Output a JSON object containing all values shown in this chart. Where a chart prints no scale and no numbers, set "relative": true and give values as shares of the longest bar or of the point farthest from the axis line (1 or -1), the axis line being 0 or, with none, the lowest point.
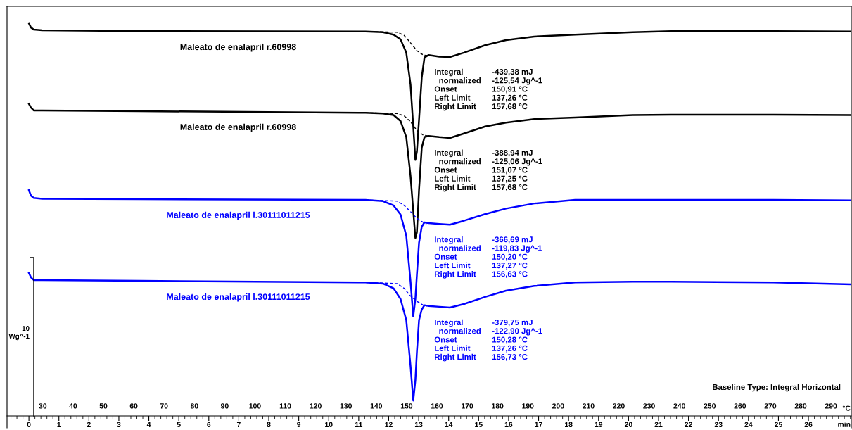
{
  "chart_data": {
    "type": "line",
    "relative": true,
    "xlabel": "°C",
    "x2label": "min",
    "x": [
      25.4,
      26.1,
      27.0,
      29.8,
      62.2,
      136.4,
      142.2,
      145.7,
      148.0,
      149.9,
      151.3,
      152.2,
      152.9,
      153.4,
      154.1,
      155.0,
      155.9,
      157.3,
      160.8,
      164.3,
      168.9,
      175.9,
      182.8,
      192.1,
      205.6,
      224.6,
      237.3,
      271.0,
      296.7
    ],
    "xlim": [
      18.2,
      296.7
    ],
    "xticks": [
      30,
      40,
      50,
      60,
      70,
      80,
      90,
      100,
      110,
      120,
      130,
      140,
      150,
      160,
      170,
      180,
      190,
      200,
      210,
      220,
      230,
      240,
      250,
      260,
      270,
      280,
      290
    ],
    "x2lim": [
      -0.73,
      27.43
    ],
    "x2ticks": [
      0,
      1,
      2,
      3,
      4,
      5,
      6,
      7,
      8,
      9,
      10,
      11,
      12,
      13,
      14,
      15,
      16,
      17,
      18,
      19,
      20,
      21,
      22,
      23,
      24,
      25,
      26
    ],
    "marker": "none",
    "series": [
      {
        "name": "Maleato de enalapril r.60998",
        "color": "#000000",
        "line_style": "solid",
        "values": [
          1.0,
          0.989,
          0.984,
          0.982,
          0.98,
          0.979,
          0.977,
          0.971,
          0.959,
          0.925,
          0.844,
          0.737,
          0.652,
          0.673,
          0.754,
          0.862,
          0.913,
          0.919,
          0.915,
          0.914,
          0.925,
          0.944,
          0.957,
          0.966,
          0.971,
          0.977,
          0.98,
          0.98,
          0.979
        ]
      },
      {
        "name": "Maleato de enalapril r.60998",
        "color": "#000000",
        "line_style": "solid",
        "values": [
          0.795,
          0.785,
          0.778,
          0.778,
          0.776,
          0.772,
          0.77,
          0.766,
          0.751,
          0.71,
          0.611,
          0.522,
          0.453,
          0.468,
          0.575,
          0.683,
          0.71,
          0.713,
          0.71,
          0.708,
          0.719,
          0.737,
          0.747,
          0.756,
          0.76,
          0.766,
          0.767,
          0.767,
          0.766
        ]
      },
      {
        "name": "Maleato de enalapril l.30111011215",
        "color": "#0000ff",
        "line_style": "solid",
        "values": [
          0.575,
          0.561,
          0.555,
          0.553,
          0.552,
          0.55,
          0.547,
          0.536,
          0.513,
          0.459,
          0.342,
          0.253,
          0.298,
          0.36,
          0.441,
          0.482,
          0.493,
          0.491,
          0.489,
          0.487,
          0.497,
          0.514,
          0.528,
          0.541,
          0.55,
          0.55,
          0.55,
          0.55,
          0.549
        ]
      },
      {
        "name": "Maleato de enalapril l.30111011215",
        "color": "#0000ff",
        "line_style": "solid",
        "values": [
          0.364,
          0.353,
          0.346,
          0.346,
          0.344,
          0.34,
          0.337,
          0.325,
          0.298,
          0.244,
          0.127,
          0.039,
          0.091,
          0.163,
          0.244,
          0.271,
          0.282,
          0.28,
          0.278,
          0.276,
          0.285,
          0.303,
          0.319,
          0.331,
          0.34,
          0.342,
          0.342,
          0.34,
          0.335
        ]
      },
      {
        "color": "#000000",
        "line_style": "dashed",
        "x": [
          136.4,
          146.9,
          149.2,
          151.1,
          153.4,
          155.5,
          157.8
        ],
        "values": [
          0.979,
          0.977,
          0.969,
          0.952,
          0.93,
          0.919,
          0.917
        ]
      },
      {
        "color": "#000000",
        "line_style": "dashed",
        "x": [
          136.4,
          146.9,
          149.2,
          151.1,
          153.4,
          155.5,
          157.8
        ],
        "values": [
          0.772,
          0.77,
          0.764,
          0.751,
          0.727,
          0.715,
          0.712
        ]
      },
      {
        "color": "#0000ff",
        "line_style": "dashed",
        "x": [
          136.4,
          146.9,
          149.2,
          151.1,
          153.4,
          155.5,
          156.6
        ],
        "values": [
          0.55,
          0.547,
          0.536,
          0.522,
          0.503,
          0.493,
          0.489
        ]
      },
      {
        "color": "#0000ff",
        "line_style": "dashed",
        "x": [
          136.4,
          146.9,
          149.2,
          151.1,
          153.4,
          155.5,
          156.7
        ],
        "values": [
          0.34,
          0.337,
          0.325,
          0.307,
          0.292,
          0.282,
          0.28
        ]
      }
    ],
    "annotations": [
      "Integral\n  normalized\nOnset\nLeft Limit\nRight Limit",
      "-439,38 mJ\n-125,54 Jg^-1\n150,91 °C\n137,26 °C\n157,68 °C",
      "Integral\n  normalized\nOnset\nLeft Limit\nRight Limit",
      "-388,94 mJ\n-125,06 Jg^-1\n151,07 °C\n137,25 °C\n157,68 °C",
      "Integral\n  normalized\nOnset\nLeft Limit\nRight Limit",
      "-366,69 mJ\n-119,83 Jg^-1\n150,20 °C\n137,27 °C\n156,63 °C",
      "Integral\n  normalized\nOnset\nLeft Limit\nRight Limit",
      "-379,75 mJ\n-122,90 Jg^-1\n150,28 °C\n137,26 °C\n156,73 °C",
      "Baseline Type: Integral Horizontal",
      "10\nWg^-1"
    ]
  }
}
